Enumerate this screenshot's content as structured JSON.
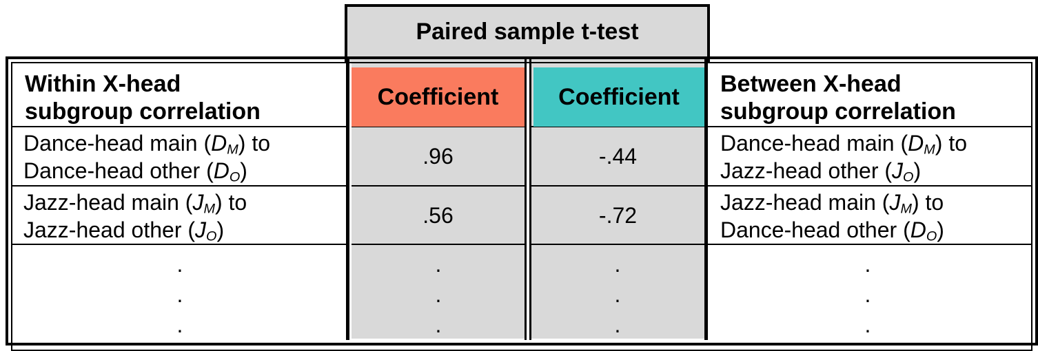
{
  "top_header": {
    "title": "Paired sample t-test"
  },
  "headers": {
    "left": [
      "Within X-head",
      "subgroup correlation"
    ],
    "coef_left": "Coefficient",
    "coef_right": "Coefficient",
    "right": [
      "Between X-head",
      "subgroup correlation"
    ]
  },
  "colors": {
    "coef_left_bg": "#fa7b5e",
    "coef_right_bg": "#42c6c3",
    "column_bg": "#d9d9d9"
  },
  "rows": [
    {
      "within": {
        "line1": {
          "pre": "Dance-head main (",
          "var": "D",
          "sub": "M",
          "post": ") to"
        },
        "line2": {
          "pre": "Dance-head other (",
          "var": "D",
          "sub": "O",
          "post": ")"
        }
      },
      "coef_left": ".96",
      "coef_right": "-.44",
      "between": {
        "line1": {
          "pre": "Dance-head main (",
          "var": "D",
          "sub": "M",
          "post": ") to"
        },
        "line2": {
          "pre": "Jazz-head other (",
          "var": "J",
          "sub": "O",
          "post": ")"
        }
      }
    },
    {
      "within": {
        "line1": {
          "pre": "Jazz-head main (",
          "var": "J",
          "sub": "M",
          "post": ") to"
        },
        "line2": {
          "pre": "Jazz-head other (",
          "var": "J",
          "sub": "O",
          "post": ")"
        }
      },
      "coef_left": ".56",
      "coef_right": "-.72",
      "between": {
        "line1": {
          "pre": "Jazz-head main (",
          "var": "J",
          "sub": "M",
          "post": ") to"
        },
        "line2": {
          "pre": "Dance-head other (",
          "var": "D",
          "sub": "O",
          "post": ")"
        }
      }
    }
  ],
  "ellipsis": "."
}
